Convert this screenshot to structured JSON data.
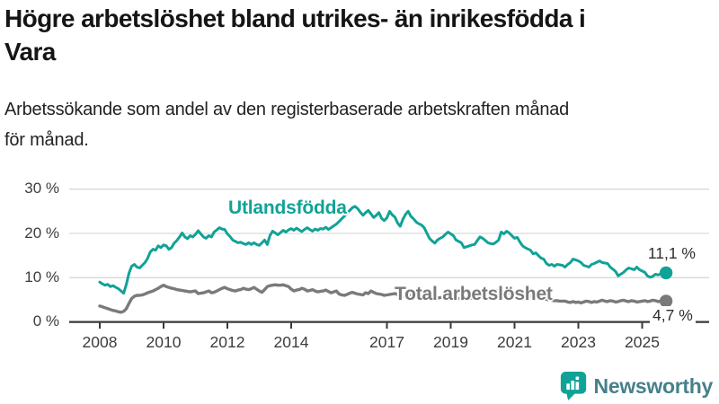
{
  "title": "Högre arbetslöshet bland utrikes- än inrikesfödda i\nVara",
  "subtitle": "Arbetssökande som andel av den registerbaserade arbetskraften månad\nför månad.",
  "chart_data": {
    "type": "line",
    "unit": "%",
    "x_start": {
      "year": 2008,
      "month": 1
    },
    "points_per_year": 12,
    "x_tick_years": [
      2008,
      2010,
      2012,
      2014,
      2017,
      2019,
      2021,
      2023,
      2025
    ],
    "y_ticks": [
      {
        "value": 30,
        "label": "30 %"
      },
      {
        "value": 20,
        "label": "20 %"
      },
      {
        "value": 10,
        "label": "10 %"
      },
      {
        "value": 0,
        "label": "0 %"
      }
    ],
    "ylim": [
      0,
      32
    ],
    "grid": true,
    "legend_position": "inline-on-line",
    "series": [
      {
        "name": "Utlandsfödda",
        "color": "#11a296",
        "end_label": "11,1 %",
        "end_value": 11.1,
        "values": [
          9.0,
          8.6,
          8.3,
          8.5,
          8.0,
          8.2,
          7.8,
          7.5,
          7.0,
          6.5,
          8.5,
          11.0,
          12.6,
          13.0,
          12.4,
          12.2,
          12.8,
          13.4,
          14.4,
          15.8,
          16.4,
          16.2,
          17.2,
          16.8,
          17.4,
          17.2,
          16.4,
          16.8,
          17.8,
          18.4,
          19.2,
          20.1,
          19.2,
          18.8,
          19.5,
          19.2,
          19.8,
          20.6,
          19.9,
          19.2,
          18.9,
          19.5,
          19.2,
          20.3,
          20.8,
          21.3,
          21.0,
          20.9,
          19.9,
          19.3,
          18.5,
          18.2,
          17.9,
          18.0,
          17.7,
          17.5,
          17.9,
          17.5,
          17.9,
          17.5,
          17.3,
          17.9,
          18.5,
          17.5,
          19.5,
          20.5,
          20.1,
          19.7,
          20.2,
          20.7,
          20.3,
          20.8,
          21.1,
          20.7,
          21.2,
          20.8,
          20.4,
          20.9,
          21.3,
          20.9,
          20.5,
          21.0,
          20.7,
          21.1,
          21.0,
          21.4,
          20.9,
          21.3,
          21.7,
          22.1,
          22.7,
          23.3,
          23.9,
          24.6,
          25.2,
          25.8,
          26.1,
          25.6,
          24.8,
          24.1,
          24.7,
          25.2,
          24.4,
          23.6,
          24.1,
          24.7,
          23.4,
          22.9,
          23.5,
          25.0,
          24.2,
          23.7,
          22.4,
          21.6,
          23.2,
          24.3,
          25.0,
          23.9,
          23.3,
          22.6,
          22.2,
          21.9,
          21.3,
          20.1,
          18.9,
          18.3,
          17.8,
          18.5,
          18.9,
          19.2,
          19.8,
          20.3,
          19.9,
          19.5,
          18.5,
          18.2,
          17.9,
          16.8,
          17.0,
          17.2,
          17.4,
          17.5,
          18.4,
          19.2,
          18.9,
          18.4,
          17.9,
          17.7,
          17.6,
          18.0,
          18.5,
          20.3,
          19.9,
          20.5,
          20.1,
          19.5,
          18.9,
          19.1,
          18.1,
          17.2,
          16.8,
          16.5,
          16.2,
          15.4,
          15.6,
          15.0,
          14.4,
          14.2,
          13.2,
          12.8,
          13.0,
          12.6,
          13.0,
          12.9,
          12.8,
          12.4,
          13.0,
          13.4,
          14.2,
          14.0,
          13.8,
          13.4,
          12.8,
          12.6,
          12.4,
          13.0,
          13.2,
          13.5,
          13.8,
          13.4,
          13.3,
          13.2,
          12.4,
          11.9,
          11.4,
          10.4,
          10.8,
          11.2,
          11.8,
          12.2,
          12.0,
          11.8,
          12.4,
          11.8,
          11.5,
          11.2,
          10.4,
          10.1,
          10.3,
          10.8,
          10.6,
          10.9,
          11.0,
          11.1
        ]
      },
      {
        "name": "Total arbetslöshet",
        "color": "#7a7a7a",
        "end_label": "4,7 %",
        "end_value": 4.7,
        "values": [
          3.6,
          3.4,
          3.2,
          3.0,
          2.8,
          2.6,
          2.5,
          2.3,
          2.2,
          2.4,
          3.0,
          4.2,
          5.3,
          5.8,
          6.0,
          6.0,
          6.1,
          6.3,
          6.6,
          6.8,
          7.0,
          7.3,
          7.6,
          8.0,
          8.3,
          8.0,
          7.8,
          7.6,
          7.5,
          7.3,
          7.2,
          7.1,
          7.0,
          6.9,
          6.8,
          6.9,
          7.0,
          6.4,
          6.5,
          6.6,
          6.8,
          7.0,
          6.6,
          6.7,
          7.0,
          7.3,
          7.6,
          7.8,
          7.5,
          7.3,
          7.1,
          7.0,
          7.2,
          7.3,
          7.6,
          7.4,
          7.3,
          7.5,
          7.8,
          7.4,
          7.0,
          6.7,
          7.3,
          8.0,
          8.2,
          8.3,
          8.4,
          8.3,
          8.3,
          8.4,
          8.2,
          8.0,
          7.4,
          7.0,
          7.2,
          7.3,
          7.6,
          7.4,
          7.0,
          7.1,
          7.3,
          7.0,
          6.8,
          6.9,
          7.0,
          7.2,
          6.9,
          6.6,
          6.8,
          7.0,
          6.3,
          6.1,
          6.0,
          6.2,
          6.5,
          6.7,
          6.5,
          6.3,
          6.2,
          6.1,
          6.6,
          6.4,
          7.0,
          6.7,
          6.4,
          6.3,
          6.2,
          6.0,
          6.1,
          6.2,
          6.3,
          6.4,
          6.2,
          6.0,
          5.9,
          5.8,
          5.9,
          6.0,
          5.9,
          5.8,
          5.8,
          5.7,
          5.6,
          5.5,
          5.6,
          5.7,
          5.5,
          5.4,
          5.5,
          5.6,
          5.5,
          5.6,
          5.6,
          5.5,
          5.4,
          5.3,
          5.4,
          5.5,
          5.4,
          5.3,
          5.4,
          5.5,
          5.6,
          5.8,
          6.0,
          6.2,
          6.8,
          7.1,
          7.2,
          7.1,
          7.0,
          6.9,
          6.8,
          6.7,
          6.6,
          6.7,
          6.6,
          6.5,
          6.4,
          6.2,
          6.0,
          5.9,
          5.8,
          5.6,
          5.5,
          5.4,
          5.3,
          5.2,
          5.1,
          5.0,
          4.9,
          4.8,
          4.8,
          4.7,
          4.7,
          4.7,
          4.5,
          4.4,
          4.6,
          4.4,
          4.5,
          4.3,
          4.5,
          4.7,
          4.6,
          4.4,
          4.6,
          4.5,
          4.7,
          4.9,
          4.7,
          4.6,
          4.8,
          4.7,
          4.5,
          4.6,
          4.8,
          4.9,
          4.7,
          4.6,
          4.8,
          4.7,
          4.5,
          4.6,
          4.7,
          4.8,
          4.6,
          4.7,
          4.9,
          4.8,
          4.6,
          4.7,
          4.8,
          4.7
        ]
      }
    ]
  },
  "branding": {
    "logo_text": "Newsworthy",
    "logo_text_color": "#47808b",
    "logo_icon": "newsworthy-bar-chart-speech-bubble",
    "logo_icon_color": "#11a296"
  }
}
